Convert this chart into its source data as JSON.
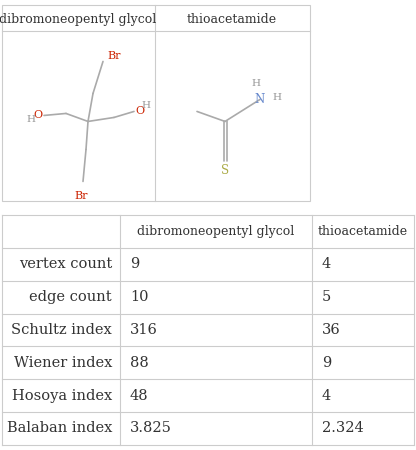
{
  "title_row": [
    "",
    "dibromoneopentyl glycol",
    "thioacetamide"
  ],
  "row_labels": [
    "vertex count",
    "edge count",
    "Schultz index",
    "Wiener index",
    "Hosoya index",
    "Balaban index"
  ],
  "col1_values": [
    "9",
    "10",
    "316",
    "88",
    "48",
    "3.825"
  ],
  "col2_values": [
    "4",
    "5",
    "36",
    "9",
    "4",
    "2.324"
  ],
  "bg_color": "#ffffff",
  "border_color": "#cccccc",
  "mol1_name": "dibromoneopentyl glycol",
  "mol2_name": "thioacetamide",
  "bond_color": "#aaaaaa",
  "br_color": "#cc2200",
  "o_color": "#cc2200",
  "h_color": "#999999",
  "n_color": "#6688cc",
  "s_color": "#aaaa44",
  "text_color": "#333333"
}
